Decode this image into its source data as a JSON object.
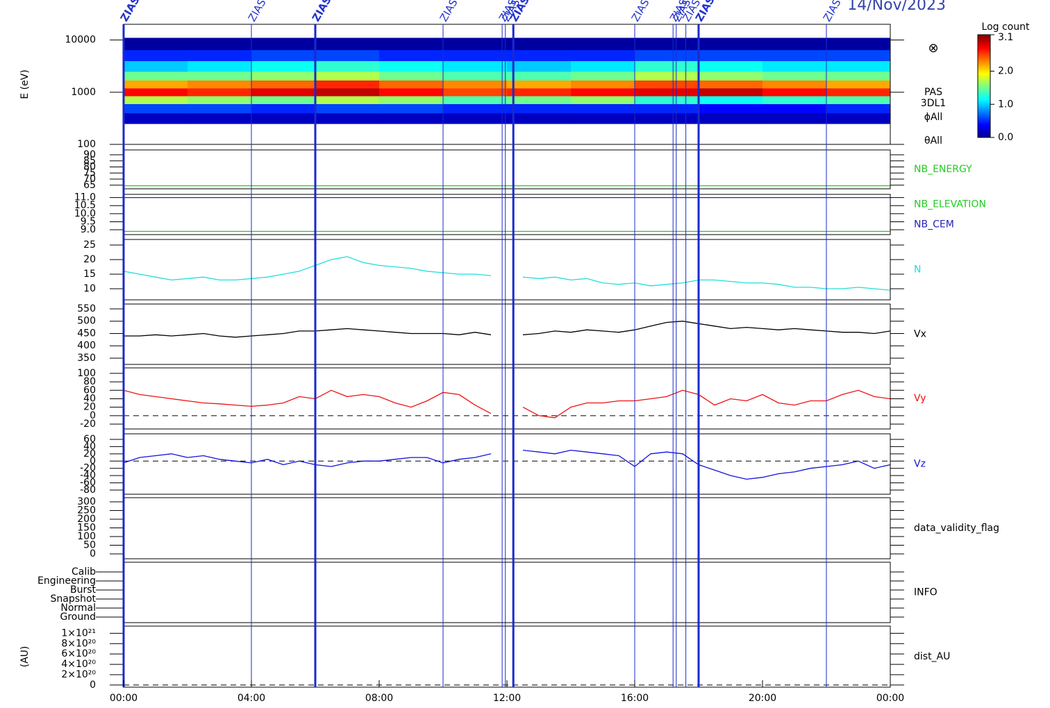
{
  "date": "14/Nov/2023",
  "xlim": [
    0,
    24
  ],
  "xticks": [
    {
      "value": 0,
      "label": "00:00"
    },
    {
      "value": 4,
      "label": "04:00"
    },
    {
      "value": 8,
      "label": "08:00"
    },
    {
      "value": 12,
      "label": "12:00"
    },
    {
      "value": 16,
      "label": "16:00"
    },
    {
      "value": 20,
      "label": "20:00"
    },
    {
      "value": 24,
      "label": "00:00"
    }
  ],
  "events": [
    {
      "time": 0,
      "label": "ZIAS",
      "bold": true
    },
    {
      "time": 4,
      "label": "ZIAS",
      "bold": false
    },
    {
      "time": 6,
      "label": "ZIAS",
      "bold": true
    },
    {
      "time": 10,
      "label": "ZIAS",
      "bold": false
    },
    {
      "time": 11.85,
      "label": "ZIAS",
      "bold": false
    },
    {
      "time": 11.95,
      "label": "ZIAS",
      "bold": false
    },
    {
      "time": 12.2,
      "label": "ZIAS",
      "bold": true
    },
    {
      "time": 16,
      "label": "ZIAS",
      "bold": false
    },
    {
      "time": 17.2,
      "label": "ZIAS",
      "bold": false
    },
    {
      "time": 17.3,
      "label": "ZIAS",
      "bold": false
    },
    {
      "time": 17.6,
      "label": "ZIAS",
      "bold": false
    },
    {
      "time": 18,
      "label": "ZIAS",
      "bold": true
    },
    {
      "time": 22,
      "label": "ZIAS",
      "bold": false
    }
  ],
  "chart_data": [
    {
      "type": "heatmap",
      "ylabel": "E (eV)",
      "log_scale": true,
      "ylim": [
        100,
        20000
      ],
      "yticks": [
        100,
        1000,
        10000
      ],
      "symbol": "⊗",
      "side_labels": [
        "PAS",
        "3DL1",
        "ϕAll",
        "θAll"
      ],
      "xbins": [
        0,
        2,
        4,
        6,
        8,
        10,
        12,
        14,
        16,
        18,
        20,
        22,
        24
      ],
      "ybins": [
        250,
        400,
        600,
        850,
        1200,
        1700,
        2500,
        4000,
        6500,
        11000
      ],
      "values": [
        [
          0.2,
          0.2,
          0.2,
          0.2,
          0.2,
          0.2,
          0.2,
          0.2,
          0.2,
          0.2,
          0.2,
          0.2
        ],
        [
          0.6,
          0.6,
          0.5,
          0.6,
          0.6,
          0.5,
          0.5,
          0.5,
          0.5,
          0.4,
          0.4,
          0.5
        ],
        [
          1.7,
          1.6,
          1.5,
          1.7,
          1.6,
          1.4,
          1.5,
          1.6,
          1.3,
          1.2,
          1.3,
          1.4
        ],
        [
          2.7,
          2.6,
          2.8,
          2.9,
          2.7,
          2.5,
          2.6,
          2.7,
          2.8,
          2.9,
          2.7,
          2.6
        ],
        [
          2.2,
          2.3,
          2.4,
          2.6,
          2.4,
          2.3,
          2.2,
          2.3,
          2.5,
          2.4,
          2.3,
          2.2
        ],
        [
          1.5,
          1.5,
          1.6,
          1.7,
          1.5,
          1.4,
          1.4,
          1.5,
          1.7,
          1.6,
          1.5,
          1.5
        ],
        [
          1.0,
          1.1,
          1.2,
          1.3,
          1.2,
          1.1,
          1.0,
          1.1,
          1.3,
          1.2,
          1.1,
          1.1
        ],
        [
          0.5,
          0.5,
          0.6,
          0.6,
          0.5,
          0.5,
          0.5,
          0.5,
          0.6,
          0.6,
          0.6,
          0.6
        ],
        [
          0.1,
          0.1,
          0.1,
          0.1,
          0.1,
          0.1,
          0.1,
          0.1,
          0.1,
          0.1,
          0.1,
          0.1
        ]
      ],
      "colorbar_title": "Log count",
      "zlim": [
        0,
        3.1
      ],
      "zticks": [
        {
          "value": 0,
          "label": "0.0"
        },
        {
          "value": 1,
          "label": "1.0"
        },
        {
          "value": 2,
          "label": "2.0"
        },
        {
          "value": 3.1,
          "label": "3.1"
        }
      ]
    },
    {
      "type": "line",
      "ylim": [
        62,
        94
      ],
      "yticks": [
        65,
        70,
        75,
        80,
        85,
        90
      ],
      "series": [
        {
          "name": "NB_ENERGY",
          "color": "#22cc22",
          "x": [
            0,
            24
          ],
          "values": [
            64.5,
            64.5
          ]
        }
      ]
    },
    {
      "type": "line",
      "ylim": [
        8.7,
        11.2
      ],
      "yticks": [
        {
          "value": 9,
          "label": "9.0"
        },
        {
          "value": 9.5,
          "label": "9.5"
        },
        {
          "value": 10,
          "label": "10.0"
        },
        {
          "value": 10.5,
          "label": "10.5"
        },
        {
          "value": 11,
          "label": "11.0"
        }
      ],
      "series": [
        {
          "name": "NB_ELEVATION",
          "color": "#22cc22",
          "x": [
            0,
            24
          ],
          "values": [
            8.9,
            8.9
          ]
        },
        {
          "name": "NB_CEM",
          "color": "#2222bb",
          "x": [
            0,
            24
          ],
          "values": [
            11.0,
            11.0
          ]
        }
      ]
    },
    {
      "type": "line",
      "ylim": [
        6.2,
        26.9
      ],
      "yticks": [
        10,
        15,
        20,
        25
      ],
      "series": [
        {
          "name": "N",
          "color": "#22dddd",
          "x": [
            0,
            0.5,
            1,
            1.5,
            2,
            2.5,
            3,
            3.5,
            4,
            4.5,
            5,
            5.5,
            6,
            6.5,
            7,
            7.5,
            8,
            8.5,
            9,
            9.5,
            10,
            10.5,
            11,
            11.5,
            12,
            12.5,
            13,
            13.5,
            14,
            14.5,
            15,
            15.5,
            16,
            16.5,
            17,
            17.5,
            18,
            18.5,
            19,
            19.5,
            20,
            20.5,
            21,
            21.5,
            22,
            22.5,
            23,
            23.5,
            24
          ],
          "values": [
            16,
            15,
            14,
            13,
            13.5,
            14,
            13,
            13,
            13.5,
            14,
            15,
            16,
            18,
            20,
            21,
            19,
            18,
            17.5,
            17,
            16,
            15.5,
            15,
            15,
            14.5,
            null,
            14,
            13.5,
            14,
            13,
            13.5,
            12,
            11.5,
            12,
            11,
            11.5,
            12,
            13,
            13,
            12.5,
            12,
            12,
            11.5,
            10.5,
            10.5,
            10,
            10,
            10.5,
            10,
            9.5
          ]
        }
      ]
    },
    {
      "type": "line",
      "ylim": [
        324.6,
        569.7
      ],
      "yticks": [
        350,
        400,
        450,
        500,
        550
      ],
      "series": [
        {
          "name": "Vx",
          "color": "#000000",
          "x": [
            0,
            0.5,
            1,
            1.5,
            2,
            2.5,
            3,
            3.5,
            4,
            4.5,
            5,
            5.5,
            6,
            6.5,
            7,
            7.5,
            8,
            8.5,
            9,
            9.5,
            10,
            10.5,
            11,
            11.5,
            12,
            12.5,
            13,
            13.5,
            14,
            14.5,
            15,
            15.5,
            16,
            16.5,
            17,
            17.5,
            18,
            18.5,
            19,
            19.5,
            20,
            20.5,
            21,
            21.5,
            22,
            22.5,
            23,
            23.5,
            24
          ],
          "values": [
            440,
            440,
            445,
            440,
            445,
            450,
            440,
            435,
            440,
            445,
            450,
            460,
            460,
            465,
            470,
            465,
            460,
            455,
            450,
            450,
            450,
            445,
            455,
            445,
            null,
            445,
            450,
            460,
            455,
            465,
            460,
            455,
            465,
            480,
            495,
            500,
            490,
            480,
            470,
            475,
            470,
            465,
            470,
            465,
            460,
            455,
            455,
            450,
            460
          ]
        }
      ]
    },
    {
      "type": "line",
      "ylim": [
        -31.5,
        113
      ],
      "yticks": [
        -20,
        0,
        20,
        40,
        60,
        80,
        100
      ],
      "reference_line": 0,
      "series": [
        {
          "name": "Vy",
          "color": "#ee1111",
          "x": [
            0,
            0.5,
            1,
            1.5,
            2,
            2.5,
            3,
            3.5,
            4,
            4.5,
            5,
            5.5,
            6,
            6.5,
            7,
            7.5,
            8,
            8.5,
            9,
            9.5,
            10,
            10.5,
            11,
            11.5,
            12,
            12.5,
            13,
            13.5,
            14,
            14.5,
            15,
            15.5,
            16,
            16.5,
            17,
            17.5,
            18,
            18.5,
            19,
            19.5,
            20,
            20.5,
            21,
            21.5,
            22,
            22.5,
            23,
            23.5,
            24
          ],
          "values": [
            60,
            50,
            45,
            40,
            35,
            30,
            28,
            25,
            22,
            25,
            30,
            45,
            40,
            60,
            45,
            50,
            45,
            30,
            20,
            35,
            55,
            50,
            25,
            5,
            null,
            20,
            0,
            -5,
            20,
            30,
            30,
            35,
            35,
            40,
            45,
            60,
            50,
            25,
            40,
            35,
            50,
            30,
            25,
            35,
            35,
            50,
            60,
            45,
            40
          ]
        }
      ]
    },
    {
      "type": "line",
      "ylim": [
        -91.5,
        75.3
      ],
      "yticks": [
        -80,
        -60,
        -40,
        -20,
        0,
        20,
        40,
        60
      ],
      "reference_line": 0,
      "series": [
        {
          "name": "Vz",
          "color": "#1111dd",
          "x": [
            0,
            0.5,
            1,
            1.5,
            2,
            2.5,
            3,
            3.5,
            4,
            4.5,
            5,
            5.5,
            6,
            6.5,
            7,
            7.5,
            8,
            8.5,
            9,
            9.5,
            10,
            10.5,
            11,
            11.5,
            12,
            12.5,
            13,
            13.5,
            14,
            14.5,
            15,
            15.5,
            16,
            16.5,
            17,
            17.5,
            18,
            18.5,
            19,
            19.5,
            20,
            20.5,
            21,
            21.5,
            22,
            22.5,
            23,
            23.5,
            24
          ],
          "values": [
            -5,
            10,
            15,
            20,
            10,
            15,
            5,
            0,
            -5,
            5,
            -10,
            0,
            -10,
            -15,
            -5,
            0,
            0,
            5,
            10,
            10,
            -5,
            5,
            10,
            20,
            null,
            30,
            25,
            20,
            30,
            25,
            20,
            15,
            -15,
            20,
            25,
            20,
            -10,
            -25,
            -40,
            -50,
            -45,
            -35,
            -30,
            -20,
            -15,
            -10,
            0,
            -20,
            -10
          ]
        }
      ]
    },
    {
      "type": "line",
      "label": "data_validity_flag",
      "ylim": [
        -28,
        324
      ],
      "yticks": [
        0,
        50,
        100,
        150,
        200,
        250,
        300
      ],
      "series": []
    },
    {
      "type": "category",
      "label": "INFO",
      "categories": [
        "Calib",
        "Engineering",
        "Burst",
        "Snapshot",
        "Normal",
        "Ground"
      ]
    },
    {
      "type": "line",
      "label": "dist_AU",
      "ylabel": "(AU)",
      "ylim": [
        -4.2e+19,
        1.139e+21
      ],
      "reference_line": 0,
      "yticks": [
        0,
        {
          "value": 2e+20,
          "label": "2×10²⁰"
        },
        {
          "value": 4e+20,
          "label": "4×10²⁰"
        },
        {
          "value": 6e+20,
          "label": "6×10²⁰"
        },
        {
          "value": 8e+20,
          "label": "8×10²⁰"
        },
        {
          "value": 1e+21,
          "label": "1×10²¹"
        }
      ],
      "series": []
    }
  ]
}
